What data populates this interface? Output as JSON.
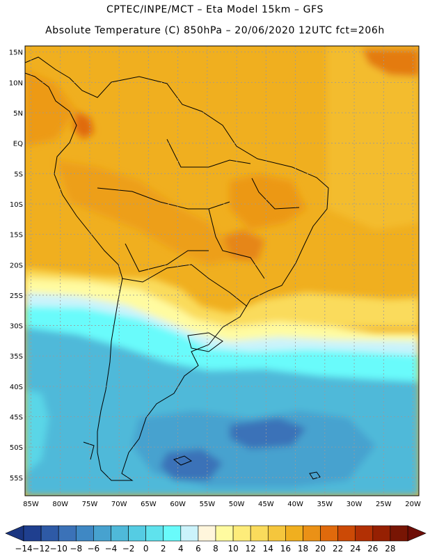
{
  "title_line1": "CPTEC/INPE/MCT –  Eta Model 15km – GFS",
  "title_line2": "Absolute Temperature (C) 850hPa – 20/06/2020 12UTC fct=206h",
  "lat_labels": [
    "15N",
    "10N",
    "5N",
    "EQ",
    "5S",
    "10S",
    "15S",
    "20S",
    "25S",
    "30S",
    "35S",
    "40S",
    "45S",
    "50S",
    "55S"
  ],
  "lat_values": [
    15,
    10,
    5,
    0,
    -5,
    -10,
    -15,
    -20,
    -25,
    -30,
    -35,
    -40,
    -45,
    -50,
    -55
  ],
  "lon_labels": [
    "85W",
    "80W",
    "75W",
    "70W",
    "65W",
    "60W",
    "55W",
    "50W",
    "45W",
    "40W",
    "35W",
    "30W",
    "25W",
    "20W"
  ],
  "lon_values": [
    -85,
    -80,
    -75,
    -70,
    -65,
    -60,
    -55,
    -50,
    -45,
    -40,
    -35,
    -30,
    -25,
    -20
  ],
  "map_extent": {
    "lon_min": -86,
    "lon_max": -19,
    "lat_min": -58,
    "lat_max": 16
  },
  "colorbar": {
    "labels": [
      "-14",
      "-12",
      "-10",
      "-8",
      "-6",
      "-4",
      "-2",
      "0",
      "2",
      "4",
      "6",
      "8",
      "10",
      "12",
      "14",
      "16",
      "18",
      "20",
      "22",
      "24",
      "26",
      "28"
    ],
    "colors": [
      "#1f3f8f",
      "#2e5aa6",
      "#3b72b8",
      "#3f88c4",
      "#47a2cf",
      "#4fb9d9",
      "#55cce3",
      "#5fe2ed",
      "#69fbfb",
      "#cbf3fb",
      "#fff6dc",
      "#fffba0",
      "#fdec7a",
      "#fadb5c",
      "#f5c63d",
      "#f0af1f",
      "#eb9116",
      "#e06a0c",
      "#cc4a06",
      "#b23004",
      "#962002",
      "#781504"
    ],
    "under_color": "#1a3580",
    "over_color": "#6e0d06"
  }
}
